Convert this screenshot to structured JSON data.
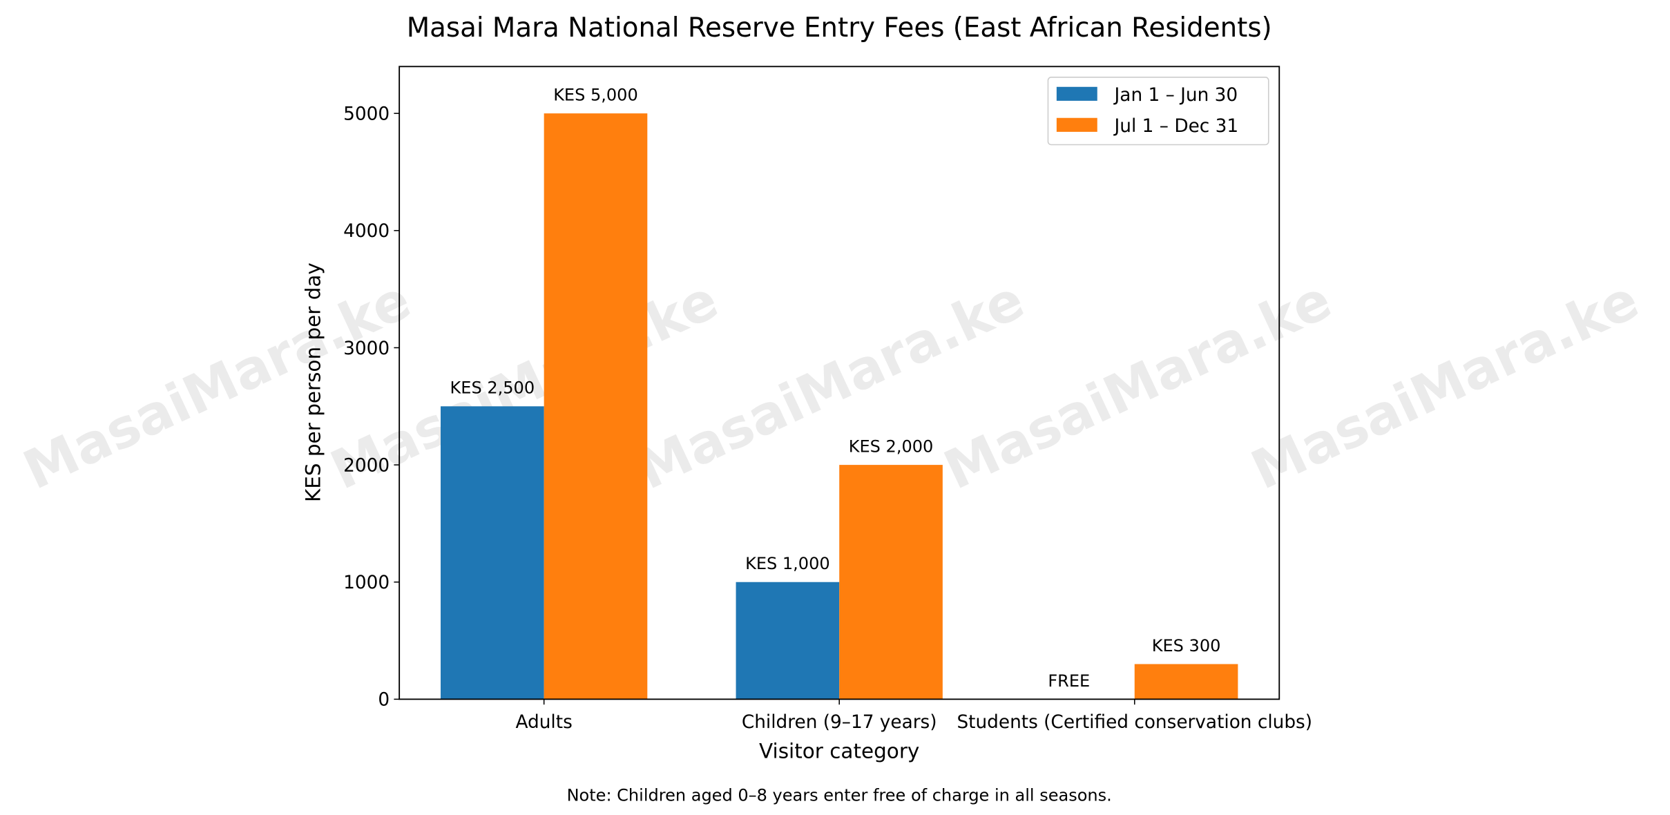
{
  "chart_data": {
    "type": "bar",
    "title": "Masai Mara National Reserve Entry Fees (East African Residents)",
    "xlabel": "Visitor category",
    "ylabel": "KES per person per day",
    "categories": [
      "Adults",
      "Children (9–17 years)",
      "Students (Certified conservation clubs)"
    ],
    "series": [
      {
        "name": "Jan 1 – Jun 30",
        "color": "#1f77b4",
        "values": [
          2500,
          1000,
          0
        ],
        "labels": [
          "KES 2,500",
          "KES 1,000",
          "FREE"
        ]
      },
      {
        "name": "Jul 1 – Dec 31",
        "color": "#ff7f0e",
        "values": [
          5000,
          2000,
          300
        ],
        "labels": [
          "KES 5,000",
          "KES 2,000",
          "KES 300"
        ]
      }
    ],
    "ylim": [
      0,
      5400
    ],
    "yticks": [
      0,
      1000,
      2000,
      3000,
      4000,
      5000
    ],
    "grid": false,
    "legend": "top-right",
    "note": "Note: Children aged 0–8 years enter free of charge in all seasons.",
    "watermark": "MasaiMara.ke"
  }
}
